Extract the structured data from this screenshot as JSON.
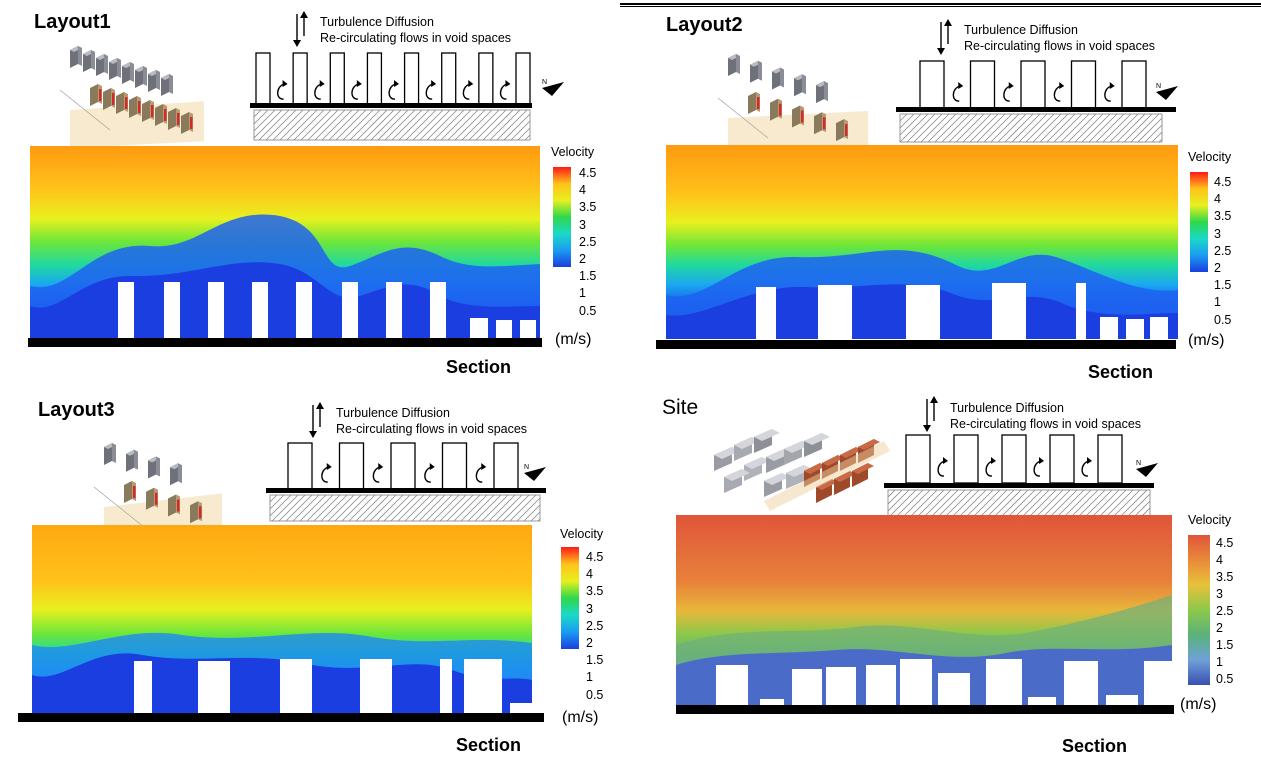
{
  "panels": [
    {
      "title": "Layout1",
      "schematic": {
        "line1": "Turbulence Diffusion",
        "line2": "Re-circulating flows in void spaces"
      },
      "legend": {
        "title": "Velocity",
        "ticks": [
          "4.5",
          "4",
          "3.5",
          "3",
          "2.5",
          "2",
          "1.5",
          "1",
          "0.5"
        ],
        "unit": "(m/s)"
      },
      "section_label": "Section"
    },
    {
      "title": "Layout2",
      "schematic": {
        "line1": "Turbulence Diffusion",
        "line2": "Re-circulating flows in void spaces"
      },
      "legend": {
        "title": "Velocity",
        "ticks": [
          "4.5",
          "4",
          "3.5",
          "3",
          "2.5",
          "2",
          "1.5",
          "1",
          "0.5"
        ],
        "unit": "(m/s)"
      },
      "section_label": "Section"
    },
    {
      "title": "Layout3",
      "schematic": {
        "line1": "Turbulence Diffusion",
        "line2": "Re-circulating flows in void spaces"
      },
      "legend": {
        "title": "Velocity",
        "ticks": [
          "4.5",
          "4",
          "3.5",
          "3",
          "2.5",
          "2",
          "1.5",
          "1",
          "0.5"
        ],
        "unit": "(m/s)"
      },
      "section_label": "Section"
    },
    {
      "title": "Site",
      "schematic": {
        "line1": "Turbulence Diffusion",
        "line2": "Re-circulating flows in void spaces"
      },
      "legend": {
        "title": "Velocity",
        "ticks": [
          "4.5",
          "4",
          "3.5",
          "3",
          "2.5",
          "2",
          "1.5",
          "1",
          "0.5"
        ],
        "unit": "(m/s)"
      },
      "section_label": "Section"
    }
  ],
  "colors": {
    "scale_high": "#f04a1a",
    "scale_mid": "#2fd84a",
    "scale_low": "#1a4fe8",
    "site_high": "#e0553a",
    "site_low": "#3a4fb0",
    "ground": "#000000",
    "building": "#ffffff",
    "iso_grey": "#8a8d96",
    "iso_brown": "#b59c72",
    "iso_red": "#d22a2a"
  },
  "icons": [
    "north-arrow-icon",
    "up-down-arrow-icon",
    "recirculation-arrow-icon"
  ]
}
